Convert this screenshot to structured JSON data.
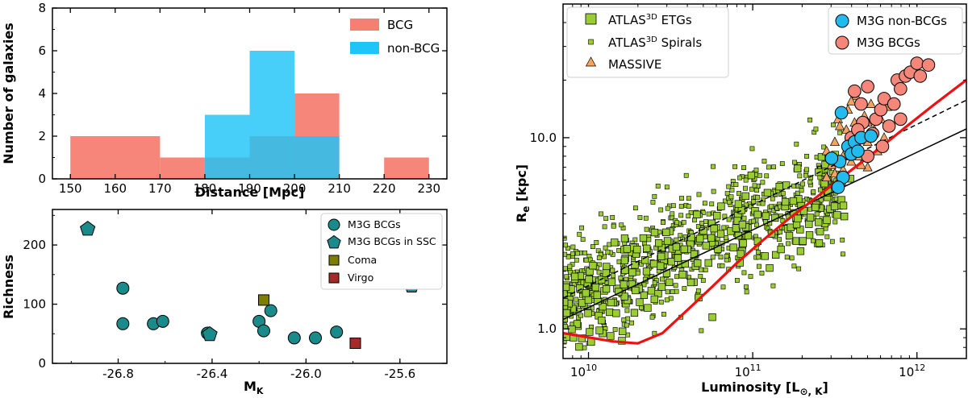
{
  "colors": {
    "bcg_hist": "#f47f72",
    "nonbcg_hist": "#20c5f8",
    "teal": "#1b8a8a",
    "coma": "#7d7d00",
    "virgo": "#a52a2a",
    "atlas_green": "#9acd32",
    "massive": "#f4a460",
    "m3g_nonbcg": "#22bbee",
    "m3g_bcg": "#f4877a",
    "fit": "#ee1111"
  },
  "chart_data": [
    {
      "id": "histogram",
      "type": "bar",
      "xlabel": "Distance [Mpc]",
      "ylabel": "Number of galaxies",
      "xlim": [
        146,
        234
      ],
      "ylim": [
        0,
        8
      ],
      "xticks": [
        "150",
        "160",
        "170",
        "180",
        "190",
        "200",
        "210",
        "220",
        "230"
      ],
      "yticks": [
        "0",
        "2",
        "4",
        "6",
        "8"
      ],
      "series": [
        {
          "name": "BCG",
          "bins": [
            [
              150,
              170,
              2
            ],
            [
              170,
              180,
              1
            ],
            [
              180,
              190,
              1
            ],
            [
              190,
              200,
              2
            ],
            [
              200,
              210,
              4
            ],
            [
              220,
              230,
              1
            ]
          ]
        },
        {
          "name": "non-BCG",
          "bins": [
            [
              180,
              190,
              3
            ],
            [
              190,
              200,
              6
            ],
            [
              200,
              210,
              2
            ]
          ]
        }
      ],
      "legend": [
        "BCG",
        "non-BCG"
      ]
    },
    {
      "id": "richness",
      "type": "scatter",
      "xlabel": "M",
      "xlabel_sub": "K",
      "ylabel": "Richness",
      "xlim": [
        -27.08,
        -25.4
      ],
      "ylim": [
        0,
        260
      ],
      "xticks": [
        "-26.8",
        "-26.4",
        "-26.0",
        "-25.6"
      ],
      "yticks": [
        "0",
        "100",
        "200"
      ],
      "series": [
        {
          "name": "M3G BCGs",
          "points": [
            [
              -26.78,
              127
            ],
            [
              -26.78,
              67
            ],
            [
              -26.65,
              67
            ],
            [
              -26.61,
              71
            ],
            [
              -26.42,
              51
            ],
            [
              -26.2,
              71
            ],
            [
              -26.18,
              55
            ],
            [
              -26.15,
              89
            ],
            [
              -26.05,
              43
            ],
            [
              -25.96,
              43
            ],
            [
              -25.87,
              53
            ]
          ]
        },
        {
          "name": "M3G BCGs in SSC",
          "points": [
            [
              -26.93,
              227
            ],
            [
              -26.41,
              49
            ],
            [
              -25.55,
              131
            ]
          ]
        },
        {
          "name": "Coma",
          "points": [
            [
              -26.18,
              107
            ]
          ]
        },
        {
          "name": "Virgo",
          "points": [
            [
              -25.79,
              34
            ]
          ]
        }
      ],
      "legend": [
        "M3G BCGs",
        "M3G BCGs in SSC",
        "Coma",
        "Virgo"
      ]
    },
    {
      "id": "size-luminosity",
      "type": "scatter",
      "xscale": "log",
      "yscale": "log",
      "xlabel": "Luminosity [L",
      "xlabel_sub": "⊙, K",
      "xlabel_end": "]",
      "ylabel": "R",
      "ylabel_sub": "e",
      "ylabel_end": " [kpc]",
      "xlim": [
        7000000000.0,
        2000000000000.0
      ],
      "ylim": [
        0.7,
        50
      ],
      "xticks": [
        {
          "base": "10",
          "exp": "10"
        },
        {
          "base": "10",
          "exp": "11"
        },
        {
          "base": "10",
          "exp": "12"
        }
      ],
      "yticks": [
        "1.0",
        "10.0"
      ],
      "series": [
        {
          "name": "ATLAS3D ETGs",
          "marker": "square",
          "count_approx": 260,
          "logL_range": [
            9.85,
            11.6
          ],
          "note": "dense cloud, R_e about 1-6 kpc"
        },
        {
          "name": "ATLAS3D Spirals",
          "marker": "small-square",
          "count_approx": 700,
          "logL_range": [
            9.85,
            11.55
          ],
          "note": "dense cloud, R_e about 1.2-10 kpc"
        },
        {
          "name": "MASSIVE",
          "marker": "triangle",
          "points": [
            [
              11.45,
              6.2
            ],
            [
              11.48,
              7.2
            ],
            [
              11.5,
              9.5
            ],
            [
              11.52,
              12.5
            ],
            [
              11.55,
              8
            ],
            [
              11.55,
              6.8
            ],
            [
              11.57,
              11
            ],
            [
              11.58,
              14
            ],
            [
              11.6,
              7.5
            ],
            [
              11.6,
              9
            ],
            [
              11.62,
              12
            ],
            [
              11.63,
              16.5
            ],
            [
              11.65,
              8
            ],
            [
              11.66,
              10.5
            ],
            [
              11.68,
              13
            ],
            [
              11.7,
              7
            ],
            [
              11.7,
              9.5
            ],
            [
              11.72,
              15
            ],
            [
              11.74,
              11
            ],
            [
              11.76,
              8.5
            ],
            [
              11.78,
              12.5
            ],
            [
              11.8,
              10
            ],
            [
              11.82,
              14.5
            ],
            [
              11.45,
              8.5
            ],
            [
              11.5,
              6.5
            ],
            [
              11.6,
              15.5
            ],
            [
              11.66,
              7.2
            ],
            [
              11.53,
              11.5
            ],
            [
              11.7,
              12
            ]
          ]
        },
        {
          "name": "M3G non-BCGs",
          "marker": "circle",
          "points": [
            [
              11.54,
              13.5
            ],
            [
              11.53,
              7.5
            ],
            [
              11.48,
              7.8
            ],
            [
              11.58,
              9
            ],
            [
              11.6,
              8.2
            ],
            [
              11.62,
              9.5
            ],
            [
              11.64,
              8.5
            ],
            [
              11.66,
              10
            ],
            [
              11.72,
              10.2
            ],
            [
              11.55,
              6.2
            ],
            [
              11.52,
              5.5
            ]
          ]
        },
        {
          "name": "M3G BCGs",
          "marker": "circle",
          "points": [
            [
              11.62,
              17.5
            ],
            [
              11.66,
              15
            ],
            [
              11.7,
              18.5
            ],
            [
              11.75,
              12.5
            ],
            [
              11.78,
              14
            ],
            [
              11.8,
              16
            ],
            [
              11.83,
              11.5
            ],
            [
              11.86,
              15
            ],
            [
              11.88,
              20
            ],
            [
              11.9,
              18
            ],
            [
              11.93,
              21
            ],
            [
              11.96,
              22
            ],
            [
              12,
              24.5
            ],
            [
              12.02,
              21
            ],
            [
              12.07,
              24
            ],
            [
              11.6,
              10
            ],
            [
              11.67,
              12
            ],
            [
              11.73,
              10.5
            ],
            [
              11.79,
              9
            ],
            [
              11.7,
              8
            ],
            [
              11.64,
              11
            ],
            [
              11.9,
              12.5
            ]
          ]
        }
      ],
      "lines": [
        {
          "name": "solid black fit",
          "logL": [
            9.845,
            12.3
          ],
          "R": [
            1.12,
            11.1
          ]
        },
        {
          "name": "dashed black fit",
          "logL": [
            9.845,
            12.3
          ],
          "R": [
            1.45,
            15.7
          ]
        },
        {
          "name": "red envelope",
          "logL": [
            9.845,
            10.15,
            10.3,
            10.45,
            10.6,
            10.75,
            10.9,
            11.05,
            11.2,
            11.35,
            11.5,
            11.65,
            11.8,
            11.95,
            12.1,
            12.3
          ],
          "R": [
            0.95,
            0.86,
            0.84,
            0.95,
            1.25,
            1.65,
            2.2,
            2.85,
            3.65,
            4.6,
            5.8,
            7.3,
            9.2,
            11.7,
            14.8,
            20
          ]
        }
      ],
      "legend_left": [
        {
          "label": "ATLAS",
          "sup": "3D",
          "rest": " ETGs"
        },
        {
          "label": "ATLAS",
          "sup": "3D",
          "rest": " Spirals"
        },
        {
          "label": "MASSIVE",
          "sup": "",
          "rest": ""
        }
      ],
      "legend_right": [
        "M3G non-BCGs",
        "M3G BCGs"
      ]
    }
  ]
}
